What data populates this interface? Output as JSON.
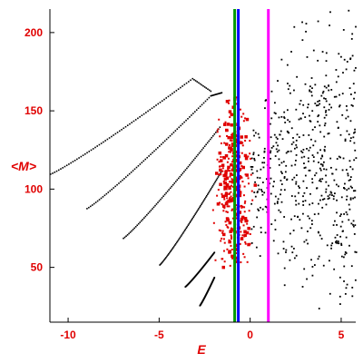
{
  "chart_data": {
    "type": "scatter",
    "title": "",
    "xlabel": "E",
    "ylabel": "<M>",
    "xlim": [
      -11,
      5.8
    ],
    "ylim": [
      15,
      215
    ],
    "xticks": [
      -10,
      -5,
      0,
      5
    ],
    "yticks": [
      50,
      100,
      150,
      200
    ],
    "xtick_labels": [
      "-10",
      "-5",
      "0",
      "5"
    ],
    "ytick_labels": [
      "50",
      "100",
      "150",
      "200"
    ],
    "grid": false,
    "legend": "none",
    "colors": {
      "axis_labels": "#e00000",
      "black_points": "#000000",
      "red_points": "#e00000",
      "line_green": "#009a00",
      "line_blue": "#0000ff",
      "line_magenta": "#ff00ff"
    },
    "vertical_lines": [
      {
        "x": -0.85,
        "color": "#009a00"
      },
      {
        "x": -0.65,
        "color": "#0000ff"
      },
      {
        "x": 1.0,
        "color": "#ff00ff"
      }
    ],
    "curves": [
      {
        "x_start": -11.0,
        "x_end": -3.2,
        "y_start": 110,
        "y_end": 171,
        "x_drop_end": -2.2,
        "y_drop_end": 163
      },
      {
        "x_start": -9.0,
        "x_end": -2.2,
        "y_start": 88,
        "y_end": 160,
        "x_drop_end": -1.6,
        "y_drop_end": 162
      },
      {
        "x_start": -7.0,
        "x_end": -1.7,
        "y_start": 69,
        "y_end": 140
      },
      {
        "x_start": -5.0,
        "x_end": -1.6,
        "y_start": 52,
        "y_end": 112
      },
      {
        "x_start": -3.6,
        "x_end": -2.0,
        "y_start": 38,
        "y_end": 60
      },
      {
        "x_start": -2.8,
        "x_end": -2.0,
        "y_start": 26,
        "y_end": 44
      }
    ],
    "black_cloud": {
      "x_range": [
        0,
        5.8
      ],
      "y_range": [
        20,
        215
      ],
      "center_y": 105
    },
    "red_cluster": {
      "x_range": [
        -2.2,
        0.4
      ],
      "y_range": [
        50,
        165
      ]
    }
  }
}
